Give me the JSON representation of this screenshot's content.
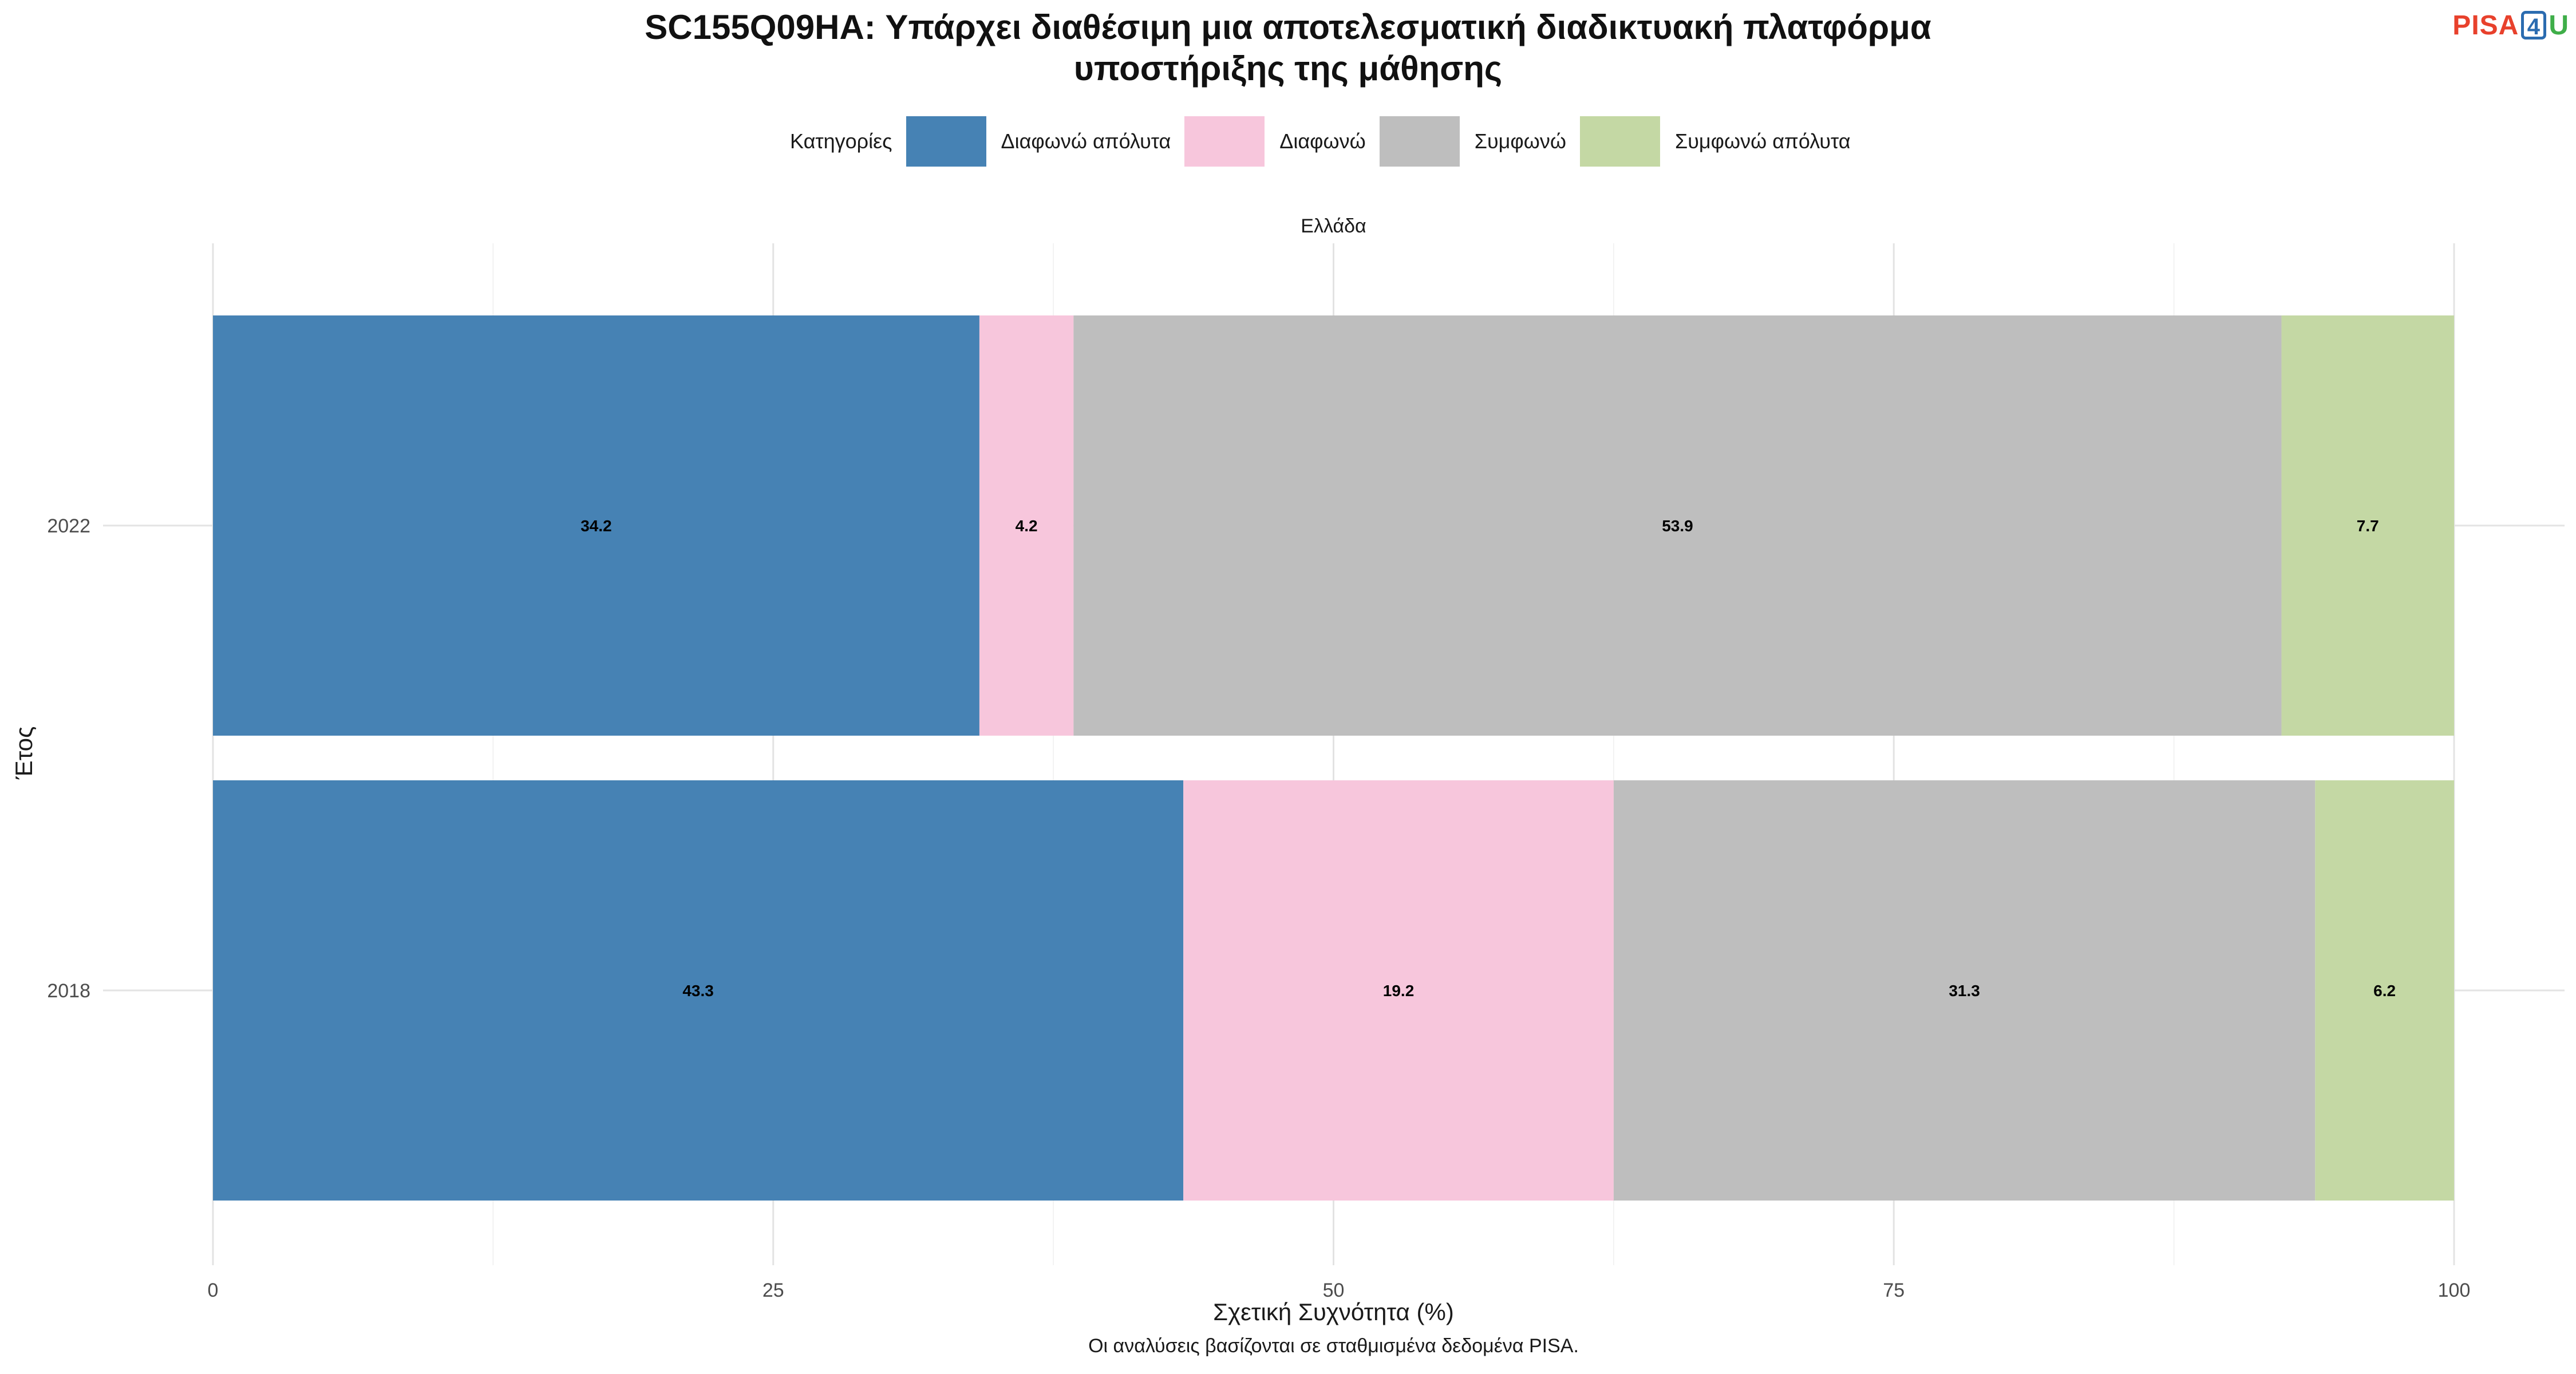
{
  "header": {
    "title_line1": "SC155Q09HA: Υπάρχει διαθέσιμη μια αποτελεσματική διαδικτυακή πλατφόρμα",
    "title_line2": "υποστήριξης της μάθησης",
    "logo_text": "PISA",
    "logo_digit": "4",
    "logo_tail": "U"
  },
  "caption": "Οι αναλύσεις βασίζονται σε σταθμισμένα δεδομένα PISA.",
  "chart_data": {
    "type": "bar",
    "orientation": "horizontal",
    "stacked": true,
    "facet": "Ελλάδα",
    "legend_title": "Κατηγορίες",
    "legend_position": "top",
    "xlabel": "Σχετική Συχνότητα (%)",
    "ylabel": "Έτος",
    "xlim": [
      0,
      100
    ],
    "xticks": [
      0,
      25,
      50,
      75,
      100
    ],
    "grid": true,
    "categories": [
      "2022",
      "2018"
    ],
    "series": [
      {
        "name": "Διαφωνώ απόλυτα",
        "color": "#4682b4",
        "values": [
          34.2,
          43.3
        ]
      },
      {
        "name": "Διαφωνώ",
        "color": "#f7c6dc",
        "values": [
          4.2,
          19.2
        ]
      },
      {
        "name": "Συμφωνώ",
        "color": "#bebebe",
        "values": [
          53.9,
          31.3
        ]
      },
      {
        "name": "Συμφωνώ απόλυτα",
        "color": "#c4d8a4",
        "values": [
          7.7,
          6.2
        ]
      }
    ]
  }
}
